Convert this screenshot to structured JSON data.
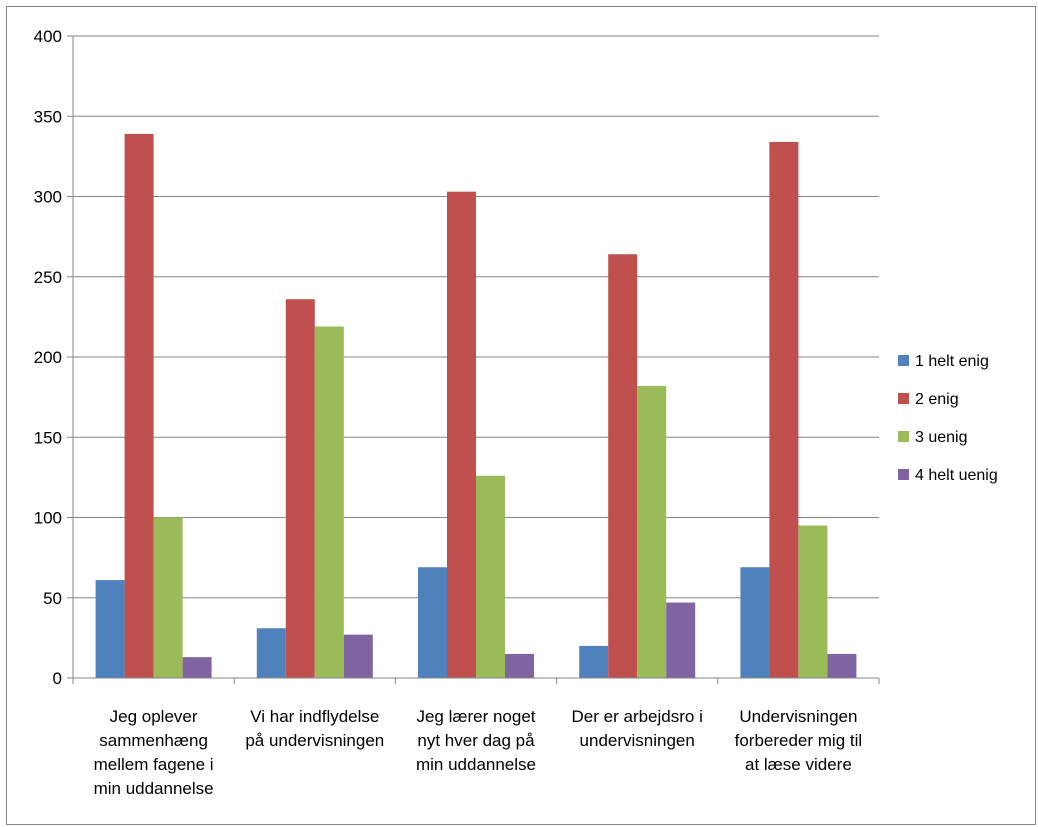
{
  "chart_data": {
    "type": "bar",
    "title": "",
    "xlabel": "",
    "ylabel": "",
    "ylim": [
      0,
      400
    ],
    "yticks": [
      0,
      50,
      100,
      150,
      200,
      250,
      300,
      350,
      400
    ],
    "grid": true,
    "legend_position": "right",
    "categories": [
      [
        "Jeg oplever",
        "sammenhæng",
        "mellem fagene i",
        "min uddannelse"
      ],
      [
        "Vi har indflydelse",
        "på undervisningen"
      ],
      [
        "Jeg lærer noget",
        "nyt hver dag på",
        "min uddannelse"
      ],
      [
        "Der er arbejdsro i",
        "undervisningen"
      ],
      [
        "Undervisningen",
        "forbereder mig til",
        "at læse videre"
      ]
    ],
    "series": [
      {
        "name": "1 helt enig",
        "color": "#4f81bd",
        "values": [
          61,
          31,
          69,
          20,
          69
        ]
      },
      {
        "name": "2 enig",
        "color": "#c0504d",
        "values": [
          339,
          236,
          303,
          264,
          334
        ]
      },
      {
        "name": "3 uenig",
        "color": "#9bbb59",
        "values": [
          100,
          219,
          126,
          182,
          95
        ]
      },
      {
        "name": "4 helt uenig",
        "color": "#8064a2",
        "values": [
          13,
          27,
          15,
          47,
          15
        ]
      }
    ]
  }
}
